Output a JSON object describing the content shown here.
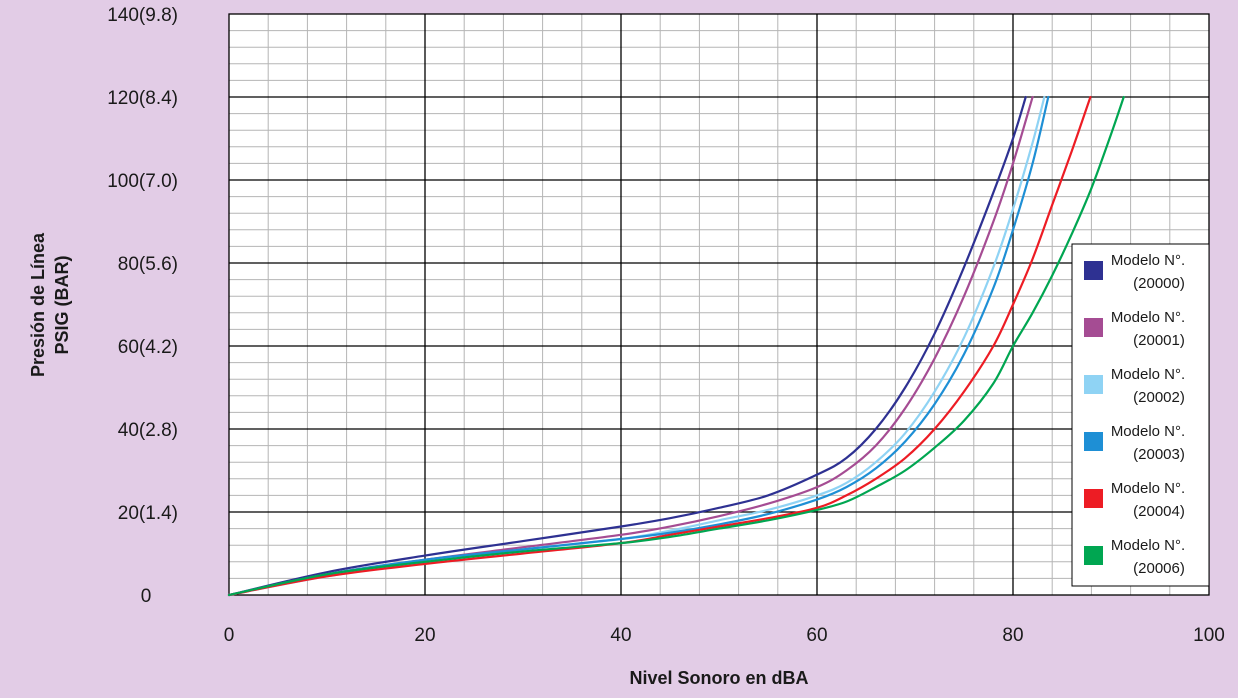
{
  "chart_data": {
    "type": "line",
    "xlabel": "Nivel Sonoro en dBA",
    "ylabel_lines": [
      "Presión de Línea",
      "PSIG (BAR)"
    ],
    "xlim": [
      0,
      100
    ],
    "ylim": [
      0,
      140
    ],
    "x_ticks": [
      0,
      20,
      40,
      60,
      80,
      100
    ],
    "x_tick_labels": [
      "0",
      "20",
      "40",
      "60",
      "80",
      "100"
    ],
    "y_ticks": [
      0,
      20,
      40,
      60,
      80,
      100,
      120,
      140
    ],
    "y_tick_labels": [
      "0",
      "20(1.4)",
      "40(2.8)",
      "60(4.2)",
      "80(5.6)",
      "100(7.0)",
      "120(8.4)",
      "140(9.8)"
    ],
    "grid": true,
    "legend_position": "right",
    "series": [
      {
        "name": "Modelo N°. (20000)",
        "legend_lines": [
          "Modelo N°.",
          "(20000)"
        ],
        "color": "#2e3192",
        "x": [
          0,
          10,
          20,
          30,
          40,
          45,
          50,
          55,
          60,
          63,
          66,
          69,
          72,
          75,
          78,
          80,
          81.3
        ],
        "y": [
          0,
          5.5,
          9.5,
          13,
          16.5,
          18.5,
          21,
          24,
          29,
          33,
          40,
          50,
          63,
          79,
          97,
          110,
          120
        ]
      },
      {
        "name": "Modelo N°. (20001)",
        "legend_lines": [
          "Modelo N°.",
          "(20001)"
        ],
        "color": "#a54c93",
        "x": [
          0,
          10,
          20,
          30,
          40,
          45,
          50,
          55,
          60,
          63,
          66,
          69,
          72,
          75,
          78,
          80,
          82
        ],
        "y": [
          0,
          5,
          8.5,
          11.5,
          14.5,
          16.5,
          19,
          22,
          26,
          30,
          36,
          45,
          57,
          72,
          90,
          104,
          120
        ]
      },
      {
        "name": "Modelo N°. (20002)",
        "legend_lines": [
          "Modelo N°.",
          "(20002)"
        ],
        "color": "#8fd3f4",
        "x": [
          0,
          10,
          20,
          30,
          40,
          45,
          50,
          55,
          60,
          63,
          66,
          69,
          72,
          75,
          78,
          80,
          82,
          83.2
        ],
        "y": [
          0,
          4.5,
          8,
          11,
          13.5,
          15.5,
          18,
          20.5,
          24,
          27,
          32,
          39,
          49,
          62,
          79,
          93,
          109,
          120
        ]
      },
      {
        "name": "Modelo N°. (20003)",
        "legend_lines": [
          "Modelo N°.",
          "(20003)"
        ],
        "color": "#1e8fd5",
        "x": [
          0,
          10,
          20,
          30,
          40,
          45,
          50,
          55,
          60,
          63,
          66,
          69,
          72,
          75,
          78,
          80,
          82,
          83.6
        ],
        "y": [
          0,
          5,
          8.5,
          11,
          13.5,
          15,
          17,
          19.5,
          23,
          26,
          30.5,
          37,
          46,
          58,
          74,
          88,
          104,
          120
        ]
      },
      {
        "name": "Modelo N°. (20004)",
        "legend_lines": [
          "Modelo N°.",
          "(20004)"
        ],
        "color": "#ed1c24",
        "x": [
          0,
          10,
          20,
          30,
          40,
          45,
          50,
          55,
          60,
          63,
          66,
          69,
          72,
          75,
          78,
          80,
          82,
          84,
          86,
          87.9
        ],
        "y": [
          0,
          4.5,
          7.5,
          10,
          12.5,
          14.5,
          16.5,
          18.5,
          21,
          24,
          28,
          33,
          40,
          49,
          60,
          70,
          81,
          94,
          107,
          120
        ]
      },
      {
        "name": "Modelo N°. (20006)",
        "legend_lines": [
          "Modelo N°.",
          "(20006)"
        ],
        "color": "#00a651",
        "x": [
          0,
          10,
          20,
          30,
          40,
          45,
          50,
          55,
          60,
          63,
          66,
          69,
          72,
          75,
          78,
          80,
          82,
          84,
          86,
          88,
          90,
          91.3
        ],
        "y": [
          0,
          5,
          8,
          10.5,
          12.5,
          14,
          16,
          18,
          20.5,
          22.5,
          26,
          30,
          35.5,
          42,
          51,
          60,
          68,
          77,
          87,
          98,
          111,
          120
        ]
      }
    ]
  }
}
